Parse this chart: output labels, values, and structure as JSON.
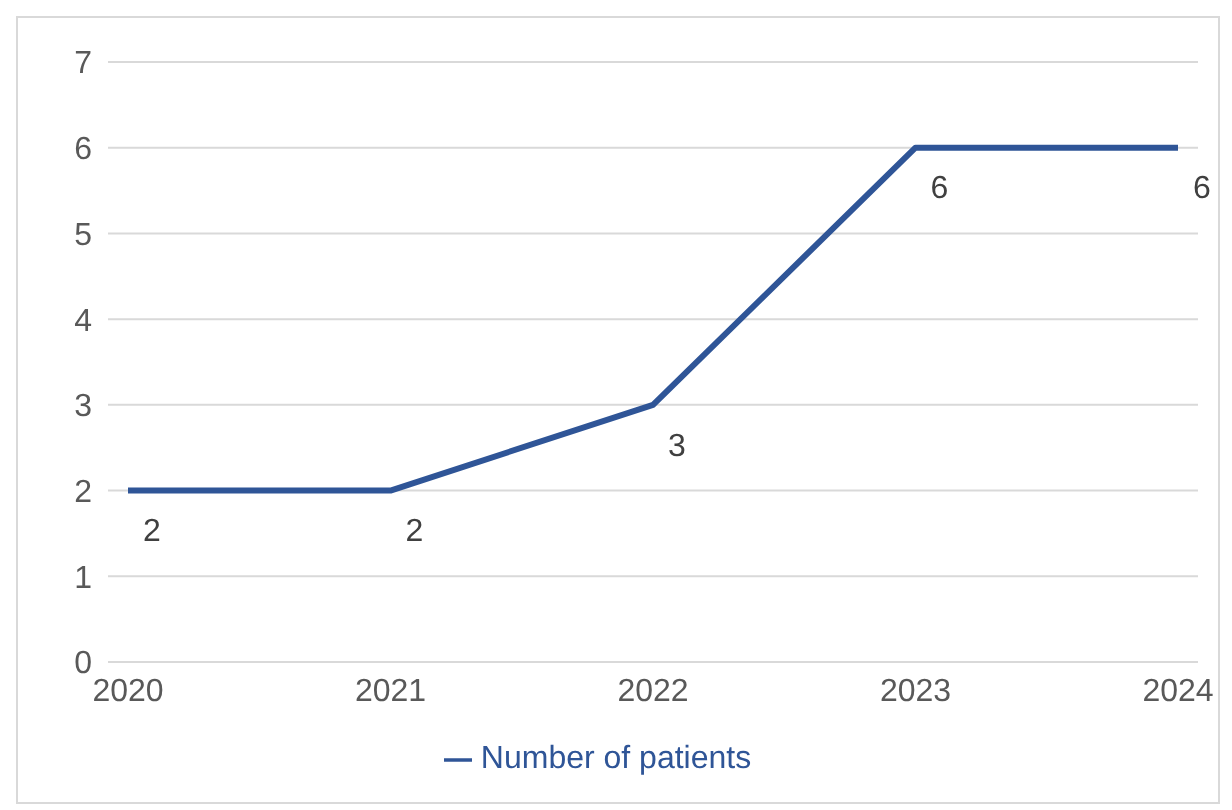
{
  "chart_data": {
    "type": "line",
    "categories": [
      "2020",
      "2021",
      "2022",
      "2023",
      "2024"
    ],
    "series": [
      {
        "name": "Number of patients",
        "color": "#2f5597",
        "values": [
          2,
          2,
          3,
          6,
          6
        ]
      }
    ],
    "ylim": [
      0,
      7
    ],
    "yticks": [
      0,
      1,
      2,
      3,
      4,
      5,
      6,
      7
    ],
    "grid": "y",
    "legend": "bottom",
    "data_labels": true,
    "marker": "none",
    "line_style": "solid"
  }
}
